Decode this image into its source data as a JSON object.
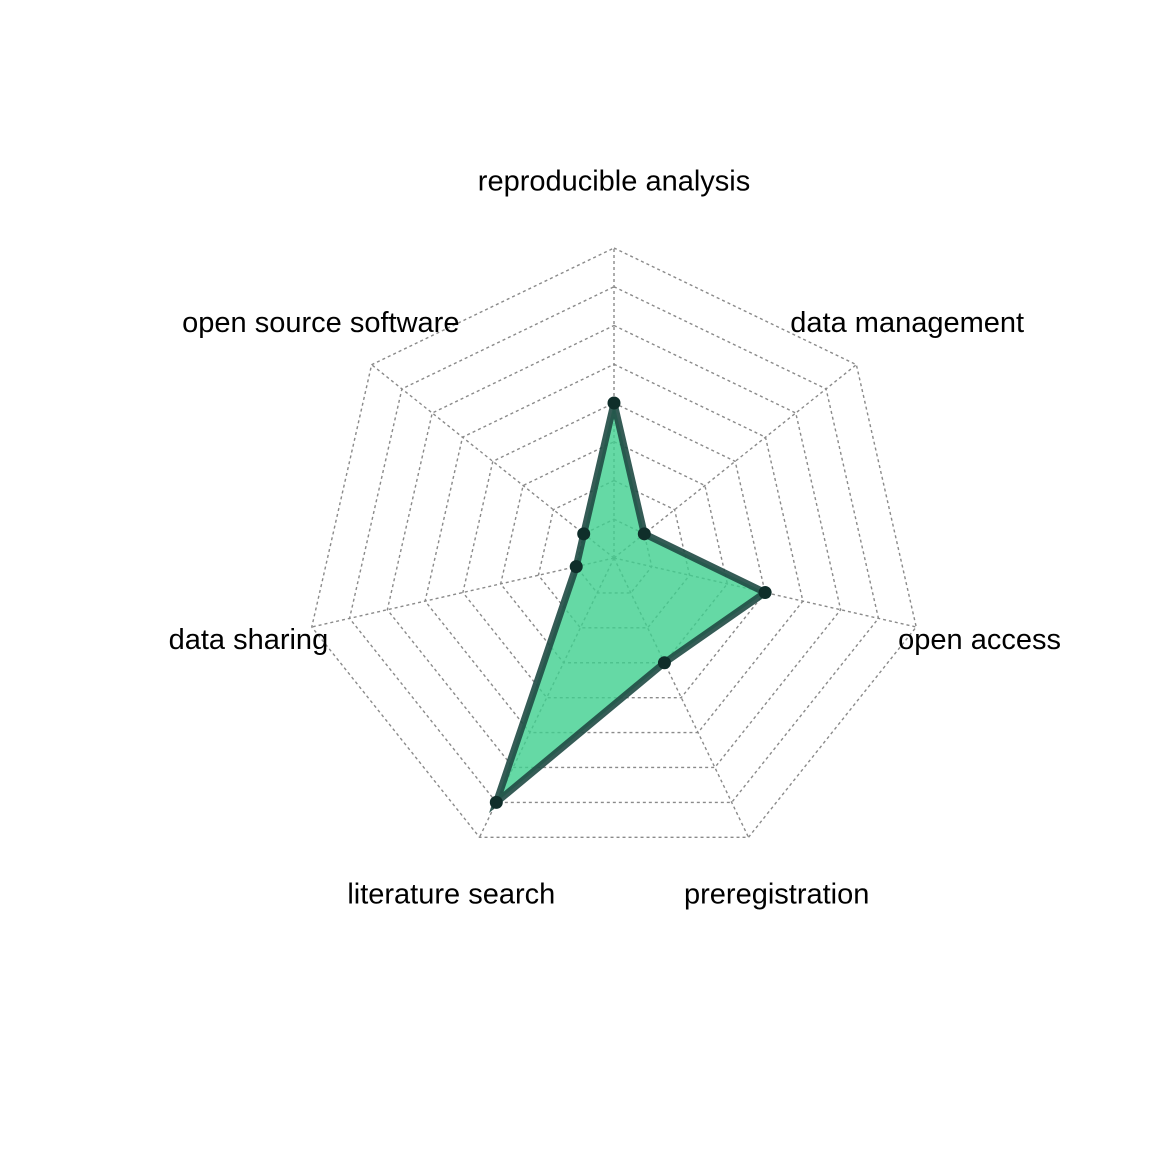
{
  "chart_data": {
    "type": "radar",
    "title": "",
    "axes": [
      "reproducible analysis",
      "data management",
      "open access",
      "preregistration",
      "literature search",
      "data sharing",
      "open source software"
    ],
    "range": [
      0,
      8
    ],
    "rings": 8,
    "grid": true,
    "series": [
      {
        "values": [
          4,
          1,
          4,
          3,
          7,
          1,
          1
        ],
        "fill_color": "#3ecf8e",
        "line_color": "#1f4a44",
        "point_color": "#0f2e2a"
      }
    ]
  }
}
